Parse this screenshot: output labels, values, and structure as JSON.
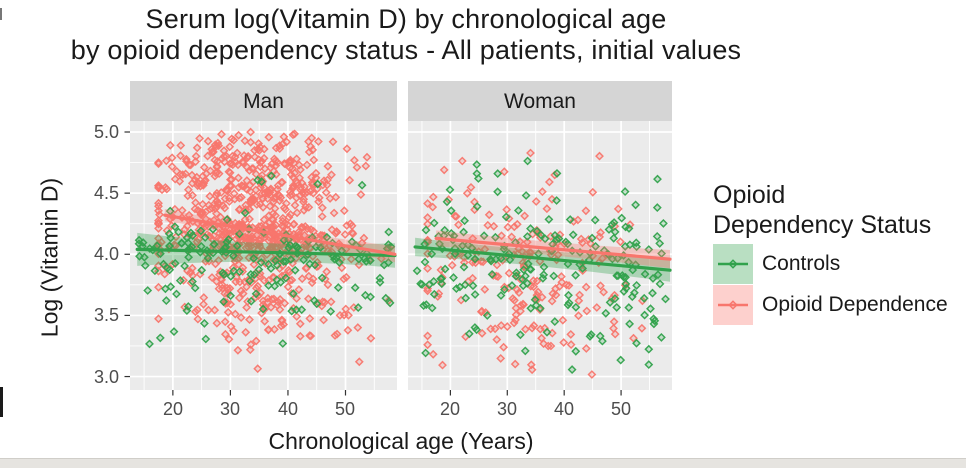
{
  "chart_data": {
    "type": "scatter",
    "title_line1": "Serum log(Vitamin D) by chronological age",
    "title_line2": "by opioid dependency status - All patients, initial values",
    "xlabel": "Chronological age (Years)",
    "ylabel": "Log (Vitamin D)",
    "x_ticks": [
      20,
      30,
      40,
      50
    ],
    "x_minor_ticks": [
      15,
      25,
      35,
      45,
      55
    ],
    "xlim": [
      12.55,
      58.95
    ],
    "y_ticks": [
      3.0,
      3.5,
      4.0,
      4.5,
      5.0
    ],
    "y_minor_ticks": [
      3.25,
      3.75,
      4.25,
      4.75
    ],
    "ylim": [
      2.89,
      5.09
    ],
    "grid": true,
    "legend": {
      "position": "right",
      "title_line1": "Opioid",
      "title_line2": "Dependency Status",
      "entries": [
        {
          "label": "Controls",
          "key": "controls"
        },
        {
          "label": "Opioid Dependence",
          "key": "opioid"
        }
      ]
    },
    "colors": {
      "controls": "#31a24c",
      "opioid": "#f8766d",
      "panel_bg": "#ebebeb",
      "strip_bg": "#d5d5d5",
      "grid": "#ffffff",
      "tick_text": "#4d4d4d",
      "title_text": "#1a1a1a"
    },
    "facets": [
      {
        "label": "Man",
        "series": [
          {
            "key": "opioid",
            "n": 780,
            "seed": 11,
            "age": {
              "dist": "normal",
              "mean": 34,
              "sd": 8.5,
              "min": 17.5,
              "max": 57.5
            },
            "y": {
              "mix": [
                {
                  "w": 0.52,
                  "mean": 4.55,
                  "sd": 0.27
                },
                {
                  "w": 0.27,
                  "mean": 4.15,
                  "sd": 0.1
                },
                {
                  "w": 0.21,
                  "mean": 3.7,
                  "sd": 0.24
                }
              ],
              "min": 3.05,
              "max": 5.0
            },
            "slope": -0.005
          },
          {
            "key": "controls",
            "n": 165,
            "seed": 22,
            "age": {
              "dist": "uniform",
              "min": 14,
              "max": 58
            },
            "y": {
              "mix": [
                {
                  "w": 0.52,
                  "mean": 4.04,
                  "sd": 0.08
                },
                {
                  "w": 0.4,
                  "mean": 3.8,
                  "sd": 0.24
                },
                {
                  "w": 0.08,
                  "mean": 4.5,
                  "sd": 0.22
                }
              ],
              "min": 3.1,
              "max": 4.92
            },
            "slope": -0.001
          }
        ],
        "trends": [
          {
            "key": "controls",
            "x": [
              13.8,
              58.6
            ],
            "y": [
              4.04,
              3.99
            ],
            "ribbon": [
              0.135,
              0.035,
              0.1
            ]
          },
          {
            "key": "opioid",
            "x": [
              18.6,
              58.6
            ],
            "y": [
              4.32,
              4.0
            ],
            "ribbon": [
              0.05,
              0.03,
              0.065
            ]
          }
        ]
      },
      {
        "label": "Woman",
        "series": [
          {
            "key": "opioid",
            "n": 210,
            "seed": 33,
            "age": {
              "dist": "normal",
              "mean": 33,
              "sd": 9.5,
              "min": 16,
              "max": 57
            },
            "y": {
              "mix": [
                {
                  "w": 0.55,
                  "mean": 4.15,
                  "sd": 0.28
                },
                {
                  "w": 0.45,
                  "mean": 3.55,
                  "sd": 0.28
                }
              ],
              "min": 3.0,
              "max": 4.88
            },
            "slope": -0.004
          },
          {
            "key": "controls",
            "n": 200,
            "seed": 44,
            "age": {
              "dist": "uniform",
              "min": 14,
              "max": 58
            },
            "y": {
              "mix": [
                {
                  "w": 0.52,
                  "mean": 4.08,
                  "sd": 0.28
                },
                {
                  "w": 0.48,
                  "mean": 3.66,
                  "sd": 0.28
                }
              ],
              "min": 3.0,
              "max": 4.95
            },
            "slope": -0.003
          }
        ],
        "trends": [
          {
            "key": "controls",
            "x": [
              13.8,
              58.6
            ],
            "y": [
              4.06,
              3.87
            ],
            "ribbon": [
              0.075,
              0.045,
              0.095
            ]
          },
          {
            "key": "opioid",
            "x": [
              17.5,
              58.6
            ],
            "y": [
              4.13,
              3.96
            ],
            "ribbon": [
              0.065,
              0.04,
              0.075
            ]
          }
        ]
      }
    ]
  }
}
